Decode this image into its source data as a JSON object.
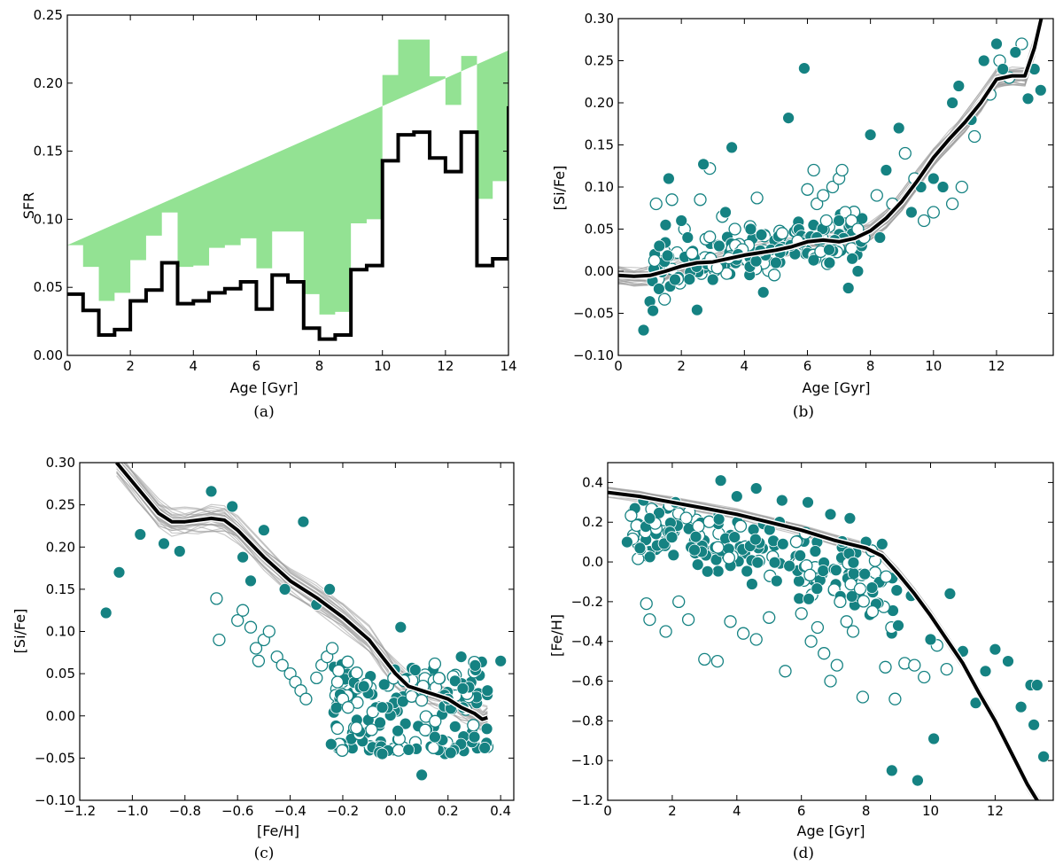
{
  "chart_data": [
    {
      "type": "line",
      "panel_label": "(a)",
      "xlabel": "Age [Gyr]",
      "ylabel": "SFR",
      "xlim": [
        0,
        14
      ],
      "ylim": [
        0,
        0.25
      ],
      "xticks": [
        0,
        2,
        4,
        6,
        8,
        10,
        12,
        14
      ],
      "yticks": [
        0.0,
        0.05,
        0.1,
        0.15,
        0.2,
        0.25
      ],
      "ytick_decimals": 2,
      "colors": {
        "line": "#000000",
        "band": "#93e293"
      },
      "bin_edges": [
        0,
        0.5,
        1.0,
        1.5,
        2.0,
        2.5,
        3.0,
        3.5,
        4.0,
        4.5,
        5.0,
        5.5,
        6.0,
        6.5,
        7.0,
        7.5,
        8.0,
        8.5,
        9.0,
        9.5,
        10.0,
        10.5,
        11.0,
        11.5,
        12.0,
        12.5,
        13.0,
        13.5,
        14.0
      ],
      "sfr": [
        0.045,
        0.033,
        0.015,
        0.019,
        0.04,
        0.048,
        0.068,
        0.038,
        0.04,
        0.046,
        0.049,
        0.054,
        0.034,
        0.059,
        0.054,
        0.02,
        0.012,
        0.015,
        0.063,
        0.066,
        0.143,
        0.162,
        0.164,
        0.145,
        0.135,
        0.164,
        0.066,
        0.071,
        0.183
      ],
      "band_lower": [
        0.008,
        0.01,
        0.008,
        0.003,
        0.012,
        0.018,
        0.022,
        0.01,
        0.014,
        0.018,
        0.018,
        0.02,
        0.006,
        0.022,
        0.018,
        0.004,
        0.004,
        0.004,
        0.034,
        0.036,
        0.104,
        0.12,
        0.128,
        0.108,
        0.095,
        0.108,
        0.014,
        0.016,
        0.14
      ],
      "band_upper": [
        0.081,
        0.065,
        0.04,
        0.046,
        0.07,
        0.088,
        0.105,
        0.065,
        0.066,
        0.079,
        0.081,
        0.086,
        0.064,
        0.091,
        0.091,
        0.045,
        0.03,
        0.032,
        0.097,
        0.1,
        0.206,
        0.232,
        0.232,
        0.205,
        0.184,
        0.22,
        0.115,
        0.128,
        0.224
      ]
    },
    {
      "type": "scatter",
      "panel_label": "(b)",
      "xlabel": "Age [Gyr]",
      "ylabel": "[Si/Fe]",
      "xlim": [
        0,
        13.8
      ],
      "ylim": [
        -0.1,
        0.3
      ],
      "xticks": [
        0,
        2,
        4,
        6,
        8,
        10,
        12
      ],
      "yticks": [
        -0.1,
        -0.05,
        0.0,
        0.05,
        0.1,
        0.15,
        0.2,
        0.25,
        0.3
      ],
      "ytick_decimals": 2,
      "colors": {
        "points": "#158282",
        "median": "#000000",
        "models": "#9a9a9a"
      },
      "median_line": {
        "x": [
          0,
          0.5,
          1.0,
          1.5,
          2.0,
          2.5,
          3.0,
          4.0,
          5.0,
          5.5,
          6.0,
          6.5,
          7.0,
          7.5,
          8.0,
          8.5,
          9.0,
          9.5,
          10.0,
          10.5,
          11.0,
          11.5,
          12.0,
          12.5,
          12.9,
          13.2,
          13.45
        ],
        "y": [
          -0.005,
          -0.006,
          -0.005,
          0.0,
          0.006,
          0.01,
          0.011,
          0.019,
          0.025,
          0.029,
          0.035,
          0.037,
          0.035,
          0.039,
          0.048,
          0.063,
          0.083,
          0.108,
          0.135,
          0.157,
          0.177,
          0.2,
          0.228,
          0.232,
          0.232,
          0.265,
          0.305
        ]
      },
      "model_band_spread": 0.014,
      "highlighted_points": [
        [
          0.8,
          -0.07
        ],
        [
          1.0,
          -0.036
        ],
        [
          1.1,
          -0.047
        ],
        [
          1.3,
          0.03
        ],
        [
          1.5,
          0.055
        ],
        [
          1.6,
          0.11
        ],
        [
          1.8,
          -0.01
        ],
        [
          2.0,
          0.06
        ],
        [
          2.2,
          0.04
        ],
        [
          2.5,
          -0.046
        ],
        [
          2.7,
          0.127
        ],
        [
          3.0,
          -0.01
        ],
        [
          3.2,
          0.03
        ],
        [
          3.4,
          0.07
        ],
        [
          3.6,
          0.147
        ],
        [
          3.8,
          0.02
        ],
        [
          4.2,
          0.05
        ],
        [
          4.6,
          -0.025
        ],
        [
          5.0,
          0.01
        ],
        [
          5.4,
          0.182
        ],
        [
          5.9,
          0.241
        ],
        [
          6.3,
          0.04
        ],
        [
          6.7,
          0.01
        ],
        [
          7.0,
          0.06
        ],
        [
          7.3,
          -0.02
        ],
        [
          7.6,
          0.0
        ],
        [
          8.0,
          0.162
        ],
        [
          8.3,
          0.04
        ],
        [
          8.5,
          0.12
        ],
        [
          8.9,
          0.17
        ],
        [
          9.3,
          0.07
        ],
        [
          9.6,
          0.1
        ],
        [
          10.0,
          0.11
        ],
        [
          10.3,
          0.1
        ],
        [
          10.6,
          0.2
        ],
        [
          10.8,
          0.22
        ],
        [
          11.2,
          0.18
        ],
        [
          11.6,
          0.25
        ],
        [
          12.0,
          0.27
        ],
        [
          12.2,
          0.24
        ],
        [
          12.6,
          0.26
        ],
        [
          13.0,
          0.205
        ],
        [
          13.2,
          0.24
        ],
        [
          13.4,
          0.215
        ]
      ],
      "open_points": [
        [
          1.2,
          0.08
        ],
        [
          1.7,
          0.085
        ],
        [
          2.1,
          0.05
        ],
        [
          2.6,
          0.085
        ],
        [
          2.9,
          0.122
        ],
        [
          3.3,
          0.065
        ],
        [
          3.7,
          0.05
        ],
        [
          4.4,
          0.087
        ],
        [
          5.2,
          0.045
        ],
        [
          6.0,
          0.097
        ],
        [
          6.2,
          0.12
        ],
        [
          6.3,
          0.08
        ],
        [
          6.5,
          0.09
        ],
        [
          6.6,
          0.06
        ],
        [
          6.8,
          0.1
        ],
        [
          7.0,
          0.11
        ],
        [
          7.1,
          0.12
        ],
        [
          7.2,
          0.07
        ],
        [
          7.4,
          0.06
        ],
        [
          7.6,
          0.05
        ],
        [
          7.8,
          0.04
        ],
        [
          8.2,
          0.09
        ],
        [
          8.7,
          0.08
        ],
        [
          9.1,
          0.14
        ],
        [
          9.4,
          0.11
        ],
        [
          9.7,
          0.06
        ],
        [
          10.0,
          0.07
        ],
        [
          10.6,
          0.08
        ],
        [
          10.9,
          0.1
        ],
        [
          11.3,
          0.16
        ],
        [
          11.8,
          0.21
        ],
        [
          12.1,
          0.25
        ],
        [
          12.4,
          0.23
        ],
        [
          12.8,
          0.27
        ]
      ],
      "cloud": {
        "seed": 11,
        "n": 160,
        "x_range": [
          1.0,
          7.8
        ],
        "spread": 0.022,
        "base_from_median": true
      }
    },
    {
      "type": "scatter",
      "panel_label": "(c)",
      "xlabel": "[Fe/H]",
      "ylabel": "[Si/Fe]",
      "xlim": [
        -1.2,
        0.45
      ],
      "ylim": [
        -0.1,
        0.3
      ],
      "xticks": [
        -1.2,
        -1.0,
        -0.8,
        -0.6,
        -0.4,
        -0.2,
        0.0,
        0.2,
        0.4
      ],
      "yticks": [
        -0.1,
        -0.05,
        0.0,
        0.05,
        0.1,
        0.15,
        0.2,
        0.25,
        0.3
      ],
      "xtick_decimals": 1,
      "ytick_decimals": 2,
      "colors": {
        "points": "#158282",
        "median": "#000000",
        "models": "#9a9a9a"
      },
      "median_line": {
        "x": [
          -1.06,
          -0.98,
          -0.9,
          -0.85,
          -0.8,
          -0.75,
          -0.7,
          -0.65,
          -0.6,
          -0.5,
          -0.4,
          -0.3,
          -0.2,
          -0.1,
          -0.05,
          0.0,
          0.05,
          0.1,
          0.15,
          0.2,
          0.25,
          0.3,
          0.33,
          0.35
        ],
        "y": [
          0.3,
          0.27,
          0.24,
          0.23,
          0.23,
          0.232,
          0.234,
          0.232,
          0.22,
          0.188,
          0.16,
          0.14,
          0.117,
          0.09,
          0.07,
          0.05,
          0.035,
          0.03,
          0.025,
          0.02,
          0.01,
          0.003,
          -0.004,
          -0.002
        ]
      },
      "model_band_spread": 0.018,
      "highlighted_points": [
        [
          -1.1,
          0.122
        ],
        [
          -1.05,
          0.17
        ],
        [
          -0.97,
          0.215
        ],
        [
          -0.88,
          0.204
        ],
        [
          -0.82,
          0.195
        ],
        [
          -0.7,
          0.266
        ],
        [
          -0.62,
          0.248
        ],
        [
          -0.58,
          0.188
        ],
        [
          -0.55,
          0.16
        ],
        [
          -0.5,
          0.22
        ],
        [
          -0.42,
          0.15
        ],
        [
          -0.35,
          0.23
        ],
        [
          -0.3,
          0.132
        ],
        [
          -0.25,
          0.15
        ],
        [
          -0.12,
          0.035
        ],
        [
          -0.05,
          0.01
        ],
        [
          0.02,
          0.105
        ],
        [
          -0.05,
          -0.045
        ],
        [
          0.05,
          -0.04
        ],
        [
          0.1,
          -0.07
        ],
        [
          0.15,
          -0.025
        ],
        [
          0.2,
          0.02
        ],
        [
          0.25,
          0.07
        ],
        [
          0.3,
          -0.025
        ],
        [
          0.35,
          0.03
        ],
        [
          0.4,
          0.065
        ]
      ],
      "open_points": [
        [
          -0.68,
          0.139
        ],
        [
          -0.67,
          0.09
        ],
        [
          -0.6,
          0.113
        ],
        [
          -0.58,
          0.125
        ],
        [
          -0.55,
          0.105
        ],
        [
          -0.53,
          0.08
        ],
        [
          -0.52,
          0.065
        ],
        [
          -0.5,
          0.09
        ],
        [
          -0.48,
          0.1
        ],
        [
          -0.45,
          0.07
        ],
        [
          -0.43,
          0.06
        ],
        [
          -0.4,
          0.05
        ],
        [
          -0.38,
          0.04
        ],
        [
          -0.36,
          0.03
        ],
        [
          -0.34,
          0.02
        ],
        [
          -0.3,
          0.045
        ],
        [
          -0.28,
          0.06
        ],
        [
          -0.26,
          0.07
        ],
        [
          -0.24,
          0.08
        ],
        [
          -0.22,
          0.04
        ],
        [
          -0.22,
          -0.015
        ],
        [
          -0.2,
          0.02
        ],
        [
          -0.18,
          0.01
        ]
      ],
      "cloud": {
        "seed": 23,
        "n": 170,
        "x_range": [
          -0.25,
          0.35
        ],
        "y_range": [
          -0.045,
          0.065
        ]
      }
    },
    {
      "type": "scatter",
      "panel_label": "(d)",
      "xlabel": "Age [Gyr]",
      "ylabel": "[Fe/H]",
      "xlim": [
        0,
        13.8
      ],
      "ylim": [
        -1.2,
        0.5
      ],
      "xticks": [
        0,
        2,
        4,
        6,
        8,
        10,
        12
      ],
      "yticks": [
        -1.2,
        -1.0,
        -0.8,
        -0.6,
        -0.4,
        -0.2,
        0.0,
        0.2,
        0.4
      ],
      "ytick_decimals": 1,
      "colors": {
        "points": "#158282",
        "median": "#000000",
        "models": "#9a9a9a"
      },
      "median_line": {
        "x": [
          0,
          1,
          2,
          3,
          4,
          5,
          6,
          7,
          7.5,
          8.0,
          8.5,
          9.0,
          9.5,
          10.0,
          10.5,
          11.0,
          11.5,
          12.0,
          12.5,
          13.0,
          13.3,
          13.5
        ],
        "y": [
          0.35,
          0.33,
          0.3,
          0.27,
          0.24,
          0.2,
          0.16,
          0.11,
          0.09,
          0.07,
          0.03,
          -0.06,
          -0.16,
          -0.27,
          -0.39,
          -0.51,
          -0.66,
          -0.8,
          -0.96,
          -1.12,
          -1.2,
          -1.25
        ]
      },
      "model_band_spread": 0.03,
      "highlighted_points": [
        [
          0.6,
          0.1
        ],
        [
          1.0,
          0.07
        ],
        [
          1.3,
          0.22
        ],
        [
          2.1,
          0.3
        ],
        [
          3.5,
          0.41
        ],
        [
          4.0,
          0.33
        ],
        [
          4.6,
          0.37
        ],
        [
          5.4,
          0.31
        ],
        [
          6.2,
          0.3
        ],
        [
          6.9,
          0.24
        ],
        [
          7.5,
          0.22
        ],
        [
          8.0,
          0.1
        ],
        [
          8.5,
          0.09
        ],
        [
          8.8,
          -1.05
        ],
        [
          9.0,
          -0.32
        ],
        [
          9.4,
          -0.17
        ],
        [
          9.6,
          -1.1
        ],
        [
          10.0,
          -0.39
        ],
        [
          10.1,
          -0.89
        ],
        [
          10.6,
          -0.16
        ],
        [
          11.0,
          -0.45
        ],
        [
          11.4,
          -0.71
        ],
        [
          11.7,
          -0.55
        ],
        [
          12.0,
          -0.44
        ],
        [
          12.4,
          -0.5
        ],
        [
          12.8,
          -0.73
        ],
        [
          13.1,
          -0.62
        ],
        [
          13.3,
          -0.62
        ],
        [
          13.5,
          -0.98
        ],
        [
          13.2,
          -0.82
        ]
      ],
      "open_points": [
        [
          1.2,
          -0.21
        ],
        [
          1.3,
          -0.29
        ],
        [
          1.8,
          -0.35
        ],
        [
          2.2,
          -0.2
        ],
        [
          2.5,
          -0.29
        ],
        [
          3.0,
          -0.49
        ],
        [
          3.4,
          -0.5
        ],
        [
          3.8,
          -0.3
        ],
        [
          4.2,
          -0.36
        ],
        [
          4.6,
          -0.39
        ],
        [
          5.0,
          -0.28
        ],
        [
          5.5,
          -0.55
        ],
        [
          6.0,
          -0.26
        ],
        [
          6.3,
          -0.4
        ],
        [
          6.5,
          -0.33
        ],
        [
          6.7,
          -0.46
        ],
        [
          6.9,
          -0.6
        ],
        [
          7.1,
          -0.52
        ],
        [
          7.2,
          -0.2
        ],
        [
          7.4,
          -0.3
        ],
        [
          7.6,
          -0.35
        ],
        [
          7.9,
          -0.68
        ],
        [
          8.2,
          -0.25
        ],
        [
          8.6,
          -0.53
        ],
        [
          8.9,
          -0.69
        ],
        [
          9.2,
          -0.51
        ],
        [
          9.5,
          -0.52
        ],
        [
          9.8,
          -0.58
        ],
        [
          10.2,
          -0.42
        ],
        [
          10.5,
          -0.54
        ]
      ],
      "cloud": {
        "seed": 37,
        "n": 200,
        "x_range": [
          0.7,
          9.0
        ],
        "spread": 0.12,
        "below_median": 0.17
      }
    }
  ]
}
